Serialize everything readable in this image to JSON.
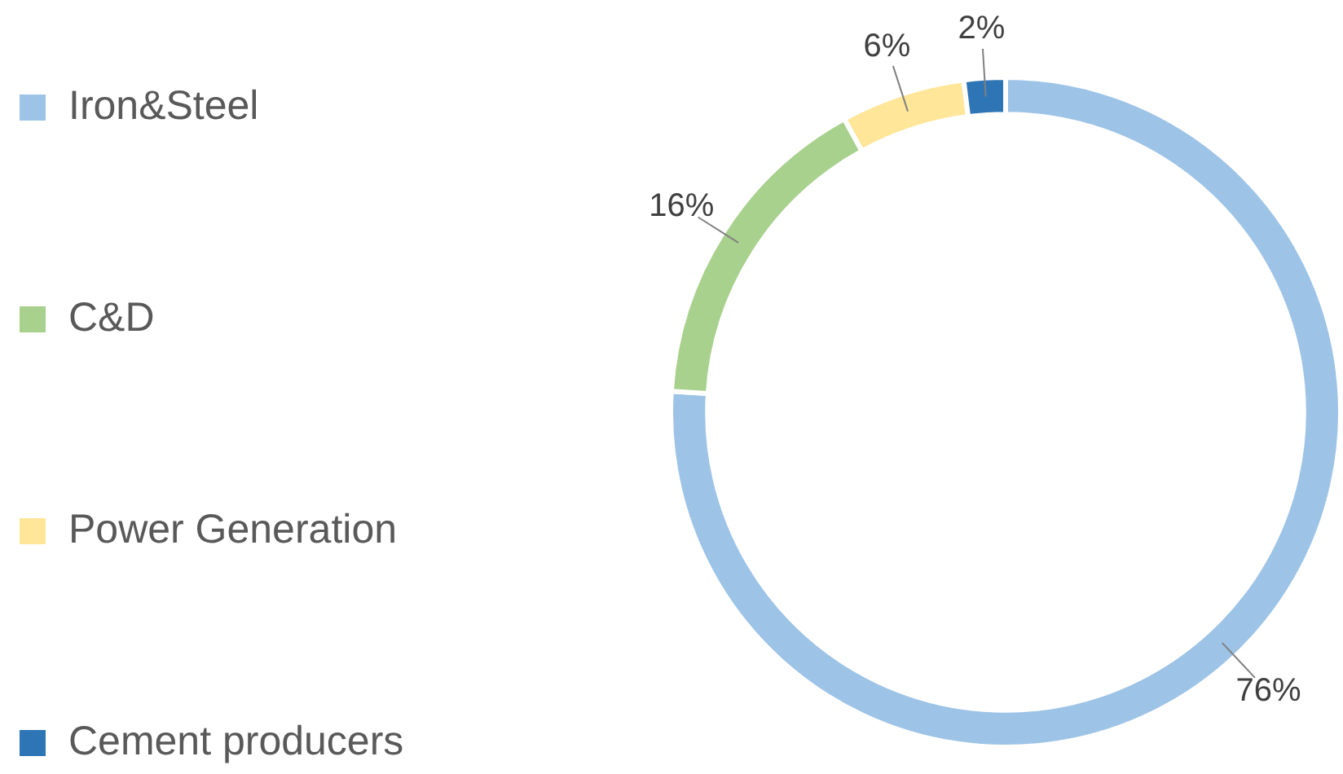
{
  "chart_data": {
    "type": "donut",
    "categories": [
      "Iron&Steel",
      "C&D",
      "Power Generation",
      "Cement producers"
    ],
    "values": [
      76,
      16,
      6,
      2
    ],
    "colors": [
      "#9dc3e6",
      "#a9d18e",
      "#ffe699",
      "#2e75b6"
    ],
    "value_labels": [
      "76%",
      "16%",
      "6%",
      "2%"
    ],
    "legend": "left"
  }
}
